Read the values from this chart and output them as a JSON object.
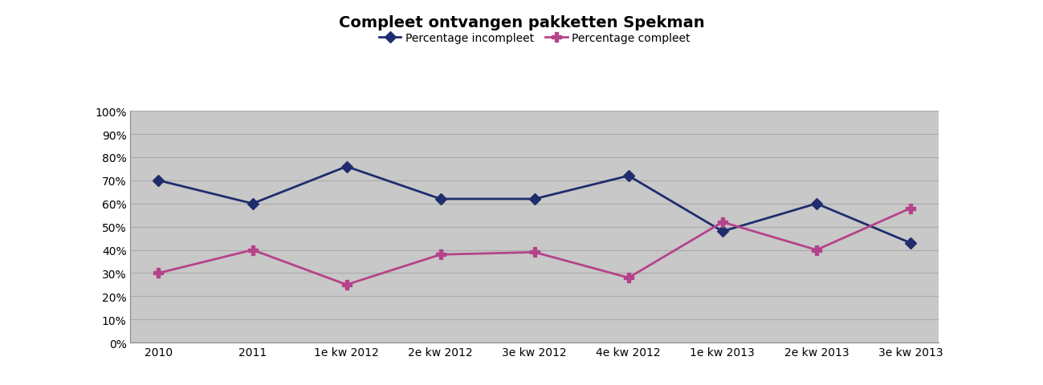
{
  "title": "Compleet ontvangen pakketten Spekman",
  "categories": [
    "2010",
    "2011",
    "1e kw 2012",
    "2e kw 2012",
    "3e kw 2012",
    "4e kw 2012",
    "1e kw 2013",
    "2e kw 2013",
    "3e kw 2013"
  ],
  "incompleet": [
    0.7,
    0.6,
    0.76,
    0.62,
    0.62,
    0.72,
    0.48,
    0.6,
    0.43
  ],
  "compleet": [
    0.3,
    0.4,
    0.25,
    0.38,
    0.39,
    0.28,
    0.52,
    0.4,
    0.58
  ],
  "color_incompleet": "#1F2D6E",
  "color_compleet": "#B5438A",
  "background_color": "#C8C8C8",
  "fig_background": "#FFFFFF",
  "legend_incompleet": "Percentage incompleet",
  "legend_compleet": "Percentage compleet",
  "ylim": [
    0.0,
    1.0
  ],
  "yticks": [
    0.0,
    0.1,
    0.2,
    0.3,
    0.4,
    0.5,
    0.6,
    0.7,
    0.8,
    0.9,
    1.0
  ],
  "ytick_labels": [
    "0%",
    "10%",
    "20%",
    "30%",
    "40%",
    "50%",
    "60%",
    "70%",
    "80%",
    "90%",
    "100%"
  ],
  "title_fontsize": 14,
  "tick_fontsize": 10,
  "legend_fontsize": 10,
  "grid_color": "#AAAAAA",
  "spine_color": "#888888"
}
